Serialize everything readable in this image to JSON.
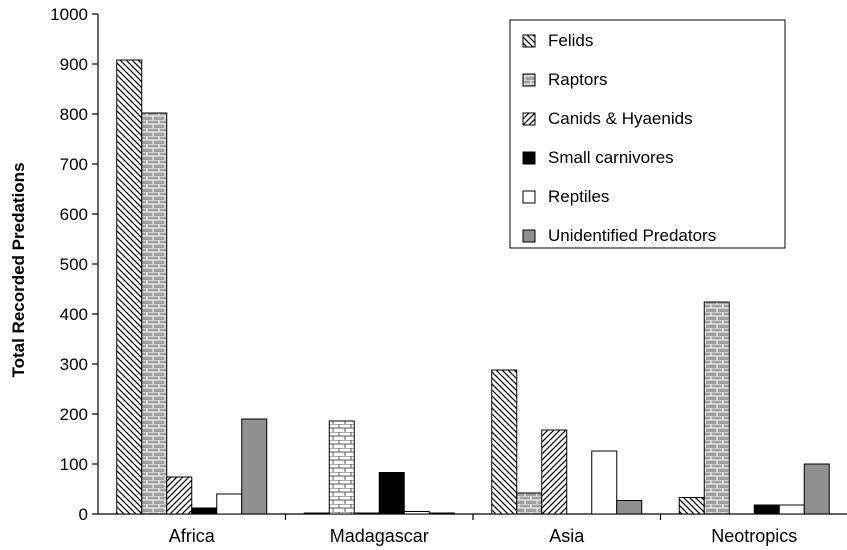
{
  "chart_data": {
    "type": "bar",
    "title": "",
    "xlabel": "",
    "ylabel": "Total Recorded Predations",
    "ylim": [
      0,
      1000
    ],
    "yticks": [
      0,
      100,
      200,
      300,
      400,
      500,
      600,
      700,
      800,
      900,
      1000
    ],
    "categories": [
      "Africa",
      "Madagascar",
      "Asia",
      "Neotropics"
    ],
    "grid": false,
    "legend_position": "top-right",
    "series": [
      {
        "name": "Felids",
        "pattern": "diagonal-back-hatch",
        "values": [
          908,
          2,
          288,
          33
        ]
      },
      {
        "name": "Raptors",
        "pattern": "brick-gray",
        "values": [
          802,
          186,
          42,
          424
        ]
      },
      {
        "name": "Canids & Hyaenids",
        "pattern": "diagonal-forward-hatch",
        "values": [
          74,
          2,
          168,
          0
        ]
      },
      {
        "name": "Small carnivores",
        "pattern": "solid-black",
        "values": [
          12,
          83,
          0,
          18
        ]
      },
      {
        "name": "Reptiles",
        "pattern": "solid-white",
        "values": [
          40,
          5,
          126,
          18
        ]
      },
      {
        "name": "Unidentified Predators",
        "pattern": "solid-gray",
        "values": [
          190,
          2,
          27,
          100
        ]
      }
    ]
  }
}
